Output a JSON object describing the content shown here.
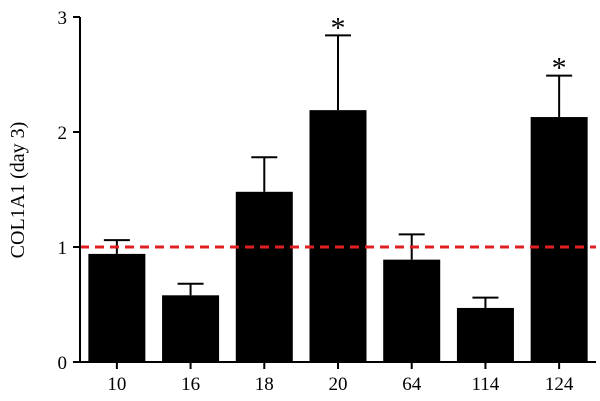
{
  "chart_data": {
    "type": "bar",
    "title": "",
    "xlabel": "",
    "ylabel": "COL1A1 (day 3)",
    "categories": [
      "10",
      "16",
      "18",
      "20",
      "64",
      "114",
      "124"
    ],
    "values": [
      0.94,
      0.58,
      1.48,
      2.19,
      0.89,
      0.47,
      2.13
    ],
    "errors": [
      0.12,
      0.1,
      0.3,
      0.65,
      0.22,
      0.09,
      0.36
    ],
    "significance": [
      "",
      "",
      "",
      "*",
      "",
      "",
      "*"
    ],
    "ylim": [
      0,
      3
    ],
    "yticks": [
      "0",
      "1",
      "2",
      "3"
    ],
    "reference_line": {
      "y": 1,
      "style": "dashed",
      "color": "#e02020"
    },
    "bar_color": "#000000",
    "grid": false,
    "legend": "none"
  }
}
